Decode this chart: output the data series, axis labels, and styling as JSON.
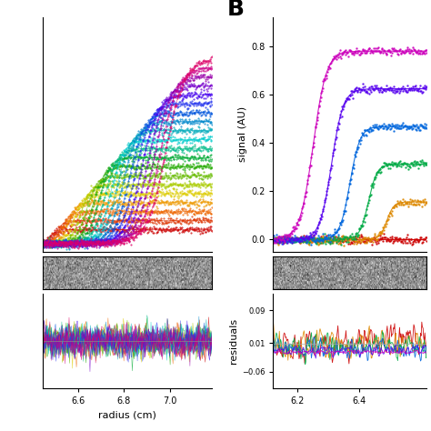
{
  "panel_A": {
    "x_min": 6.45,
    "x_max": 7.18,
    "x_ticks": [
      6.6,
      6.8,
      7.0
    ],
    "x_label": "radius (cm)",
    "main_ylim": [
      -0.03,
      0.82
    ],
    "resid_ylim": [
      -0.08,
      0.08
    ],
    "n_scans": 20,
    "colors_main": [
      "#cc0000",
      "#dd3300",
      "#ee6600",
      "#ee9900",
      "#ddcc00",
      "#aacc00",
      "#66bb00",
      "#22aa00",
      "#00aa33",
      "#00bb88",
      "#00cccc",
      "#00aabb",
      "#0088cc",
      "#0055dd",
      "#2233ee",
      "#4400ee",
      "#7700cc",
      "#9900aa",
      "#cc0088",
      "#dd0066"
    ]
  },
  "panel_B": {
    "x_min": 6.12,
    "x_max": 6.62,
    "x_ticks": [
      6.2,
      6.4
    ],
    "x_label": "",
    "main_ylim": [
      -0.05,
      0.92
    ],
    "main_yticks": [
      0.0,
      0.2,
      0.4,
      0.6,
      0.8
    ],
    "resid_ylim": [
      -0.1,
      0.13
    ],
    "resid_yticks": [
      -0.06,
      0.01,
      0.09
    ],
    "n_scans": 6,
    "colors_main": [
      "#cc0000",
      "#dd8800",
      "#00aa44",
      "#0066dd",
      "#5500ee",
      "#cc00bb"
    ]
  },
  "panel_B_label": "B",
  "ylabel_main": "signal (AU)",
  "ylabel_resid": "residuals",
  "background": "#ffffff"
}
